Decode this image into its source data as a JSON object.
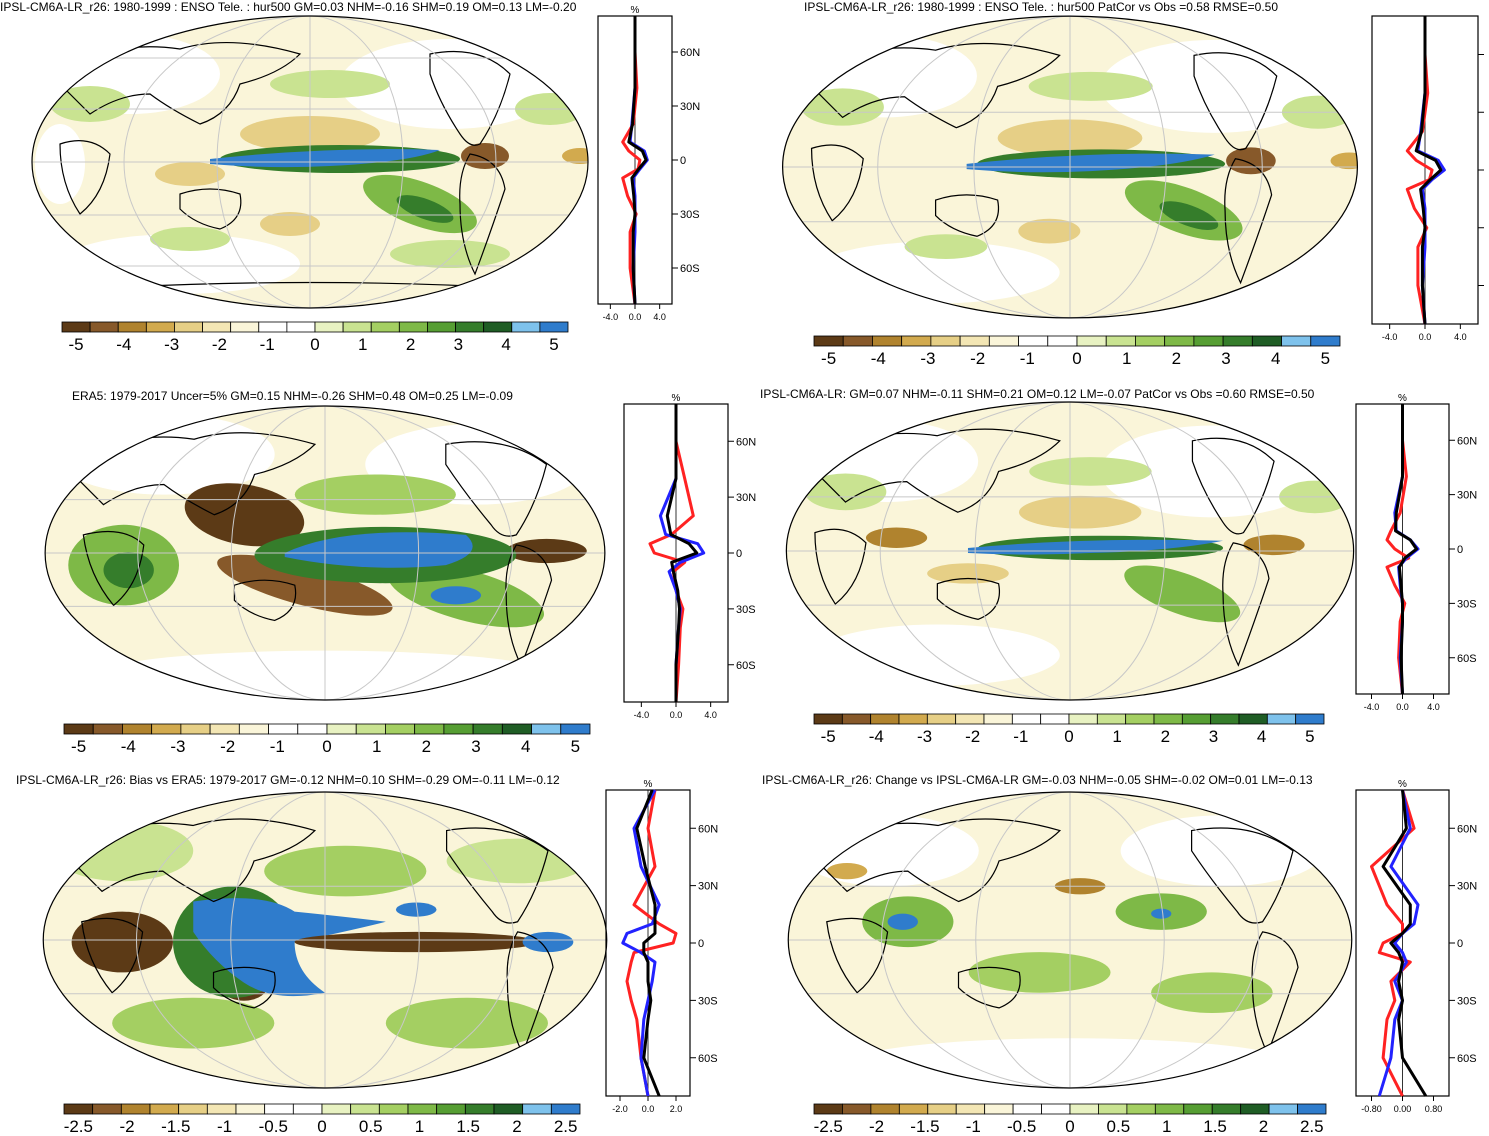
{
  "colors": {
    "palette": [
      "#5c3a16",
      "#87592a",
      "#b0832e",
      "#d2aa4e",
      "#e6cf86",
      "#f3e6b4",
      "#faf5d9",
      "#ffffff",
      "#ffffff",
      "#e8f2c2",
      "#c9e391",
      "#a4cf62",
      "#7eb947",
      "#569e33",
      "#357d2b",
      "#1f5d25",
      "#7ec2ec",
      "#2f7ccc"
    ],
    "model": "#2222ff",
    "obs": "#ff2222",
    "total": "#000000",
    "land": "#000000"
  },
  "panels": [
    {
      "title": "IPSL-CM6A-LR_r26: 1980-1999 : ENSO Tele. : hur500 GM=0.03 NHM=-0.16 SHM=0.19 OM=0.13 LM=-0.20",
      "unit": "%",
      "lat_ticks": [
        "60N",
        "30N",
        "0",
        "30S",
        "60S"
      ],
      "profile_x_ticks": [
        "-4.0",
        "0.0",
        "4.0"
      ],
      "colorbar_labels": [
        "-5",
        "-4",
        "-3",
        "-2",
        "-1",
        "0",
        "1",
        "2",
        "3",
        "4",
        "5"
      ]
    },
    {
      "title": "IPSL-CM6A-LR_r26: 1980-1999 : ENSO Tele. : hur500 PatCor vs Obs =0.58 RMSE=0.50",
      "unit": "",
      "lat_ticks": [],
      "profile_x_ticks": [
        "-4.0",
        "0.0",
        "4.0"
      ],
      "colorbar_labels": [
        "-5",
        "-4",
        "-3",
        "-2",
        "-1",
        "0",
        "1",
        "2",
        "3",
        "4",
        "5"
      ]
    },
    {
      "title": "ERA5: 1979-2017 Uncer=5% GM=0.15 NHM=-0.26 SHM=0.48 OM=0.25 LM=-0.09",
      "unit": "%",
      "lat_ticks": [
        "60N",
        "30N",
        "0",
        "30S",
        "60S"
      ],
      "profile_x_ticks": [
        "-4.0",
        "0.0",
        "4.0"
      ],
      "colorbar_labels": [
        "-5",
        "-4",
        "-3",
        "-2",
        "-1",
        "0",
        "1",
        "2",
        "3",
        "4",
        "5"
      ]
    },
    {
      "title": "IPSL-CM6A-LR: GM=0.07 NHM=-0.11 SHM=0.21 OM=0.12 LM=-0.07 PatCor vs Obs =0.60 RMSE=0.50",
      "unit": "%",
      "lat_ticks": [
        "60N",
        "30N",
        "0",
        "30S",
        "60S"
      ],
      "profile_x_ticks": [
        "-4.0",
        "0.0",
        "4.0"
      ],
      "colorbar_labels": [
        "-5",
        "-4",
        "-3",
        "-2",
        "-1",
        "0",
        "1",
        "2",
        "3",
        "4",
        "5"
      ]
    },
    {
      "title": "IPSL-CM6A-LR_r26: Bias vs ERA5: 1979-2017 GM=-0.12 NHM=0.10 SHM=-0.29 OM=-0.11 LM=-0.12",
      "unit": "%",
      "lat_ticks": [
        "60N",
        "30N",
        "0",
        "30S",
        "60S"
      ],
      "profile_x_ticks": [
        "-2.0",
        "0.0",
        "2.0"
      ],
      "colorbar_labels": [
        "-2.5",
        "-2",
        "-1.5",
        "-1",
        "-0.5",
        "0",
        "0.5",
        "1",
        "1.5",
        "2",
        "2.5"
      ]
    },
    {
      "title": "IPSL-CM6A-LR_r26: Change vs IPSL-CM6A-LR GM=-0.03 NHM=-0.05 SHM=-0.02 OM=0.01 LM=-0.13",
      "unit": "%",
      "lat_ticks": [
        "60N",
        "30N",
        "0",
        "30S",
        "60S"
      ],
      "profile_x_ticks": [
        "-0.80",
        "0.00",
        "0.80"
      ],
      "colorbar_labels": [
        "-2.5",
        "-2",
        "-1.5",
        "-1",
        "-0.5",
        "0",
        "0.5",
        "1",
        "1.5",
        "2",
        "2.5"
      ]
    }
  ],
  "chart_data": [
    {
      "type": "heatmap",
      "title": "IPSL-CM6A-LR_r26: 1980-1999 : ENSO Tele. : hur500 GM=0.03 NHM=-0.16 SHM=0.19 OM=0.13 LM=-0.20",
      "colorbar": [
        -5,
        5
      ],
      "profile": {
        "lat": [
          80,
          60,
          40,
          20,
          10,
          5,
          0,
          -5,
          -10,
          -20,
          -30,
          -40,
          -60,
          -80
        ],
        "model": [
          0,
          0,
          0,
          -0.5,
          -0.8,
          1.5,
          2.0,
          0.8,
          -0.3,
          0,
          0,
          0,
          -0.3,
          0
        ],
        "obs": [
          0,
          0,
          0.3,
          -0.3,
          -2.0,
          -1.0,
          0.8,
          0.5,
          -2.0,
          -1.2,
          0.2,
          -0.8,
          -0.8,
          0
        ],
        "total": [
          0,
          0,
          0,
          -0.4,
          -1.0,
          1.2,
          1.8,
          0.6,
          -0.5,
          -0.2,
          0,
          -0.3,
          -0.3,
          0
        ]
      }
    },
    {
      "type": "heatmap",
      "title": "IPSL-CM6A-LR_r26: 1980-1999 : ENSO Tele. : hur500 PatCor vs Obs =0.58 RMSE=0.50",
      "colorbar": [
        -5,
        5
      ],
      "profile": {
        "lat": [
          80,
          60,
          40,
          20,
          10,
          5,
          0,
          -5,
          -10,
          -20,
          -30,
          -40,
          -60,
          -80
        ],
        "model": [
          0,
          0,
          0,
          -0.5,
          -0.8,
          1.5,
          2.2,
          0.8,
          -0.3,
          0,
          0,
          0,
          -0.3,
          0
        ],
        "obs": [
          0,
          0,
          0.3,
          -0.3,
          -2.0,
          -1.0,
          0.8,
          0.5,
          -2.0,
          -1.2,
          0.2,
          -0.8,
          -0.8,
          0
        ],
        "total": [
          0,
          0,
          0,
          -0.4,
          -1.0,
          1.2,
          1.8,
          0.6,
          -0.5,
          -0.2,
          0,
          -0.3,
          -0.3,
          0
        ]
      }
    },
    {
      "type": "heatmap",
      "title": "ERA5: 1979-2017 Uncer=5% GM=0.15 NHM=-0.26 SHM=0.48 OM=0.25 LM=-0.09",
      "colorbar": [
        -5,
        5
      ],
      "profile": {
        "lat": [
          80,
          60,
          40,
          20,
          10,
          5,
          0,
          -5,
          -10,
          -20,
          -30,
          -40,
          -60,
          -80
        ],
        "model": [
          0,
          0,
          0,
          -1.8,
          -1.2,
          2.5,
          3.2,
          0.5,
          -0.8,
          0,
          0.5,
          0.3,
          0,
          0
        ],
        "obs": [
          0,
          0,
          1.0,
          2.0,
          -0.5,
          -3.0,
          -2.5,
          1.0,
          -0.3,
          0,
          0.8,
          0.5,
          0.3,
          0
        ],
        "total": [
          0,
          0,
          0,
          -1.0,
          -0.6,
          1.5,
          2.4,
          -0.5,
          -0.3,
          0.2,
          0.4,
          0.3,
          0,
          0
        ]
      }
    },
    {
      "type": "heatmap",
      "title": "IPSL-CM6A-LR: GM=0.07 NHM=-0.11 SHM=0.21 OM=0.12 LM=-0.07 PatCor vs Obs =0.60 RMSE=0.50",
      "colorbar": [
        -5,
        5
      ],
      "profile": {
        "lat": [
          80,
          60,
          40,
          20,
          10,
          5,
          0,
          -5,
          -10,
          -20,
          -30,
          -40,
          -60,
          -80
        ],
        "model": [
          0,
          0,
          0,
          -1.0,
          -0.8,
          1.0,
          2.0,
          0.5,
          -0.5,
          -0.3,
          0,
          0,
          -0.3,
          0
        ],
        "obs": [
          0,
          0,
          0.5,
          -0.3,
          -1.5,
          -2.0,
          -1.0,
          0.8,
          -2.0,
          -1.0,
          0.3,
          -0.3,
          -0.5,
          0
        ],
        "total": [
          0,
          0,
          0,
          -0.8,
          -0.9,
          1.0,
          1.8,
          0.3,
          -0.4,
          -0.2,
          0,
          0,
          -0.2,
          0
        ]
      }
    },
    {
      "type": "heatmap",
      "title": "IPSL-CM6A-LR_r26: Bias vs ERA5: 1979-2017 GM=-0.12 NHM=0.10 SHM=-0.29 OM=-0.11 LM=-0.12",
      "colorbar": [
        -2.5,
        2.5
      ],
      "profile": {
        "lat": [
          80,
          60,
          40,
          20,
          10,
          5,
          0,
          -5,
          -10,
          -20,
          -30,
          -40,
          -60,
          -80
        ],
        "model": [
          0.5,
          -1.0,
          -0.5,
          0.8,
          0.3,
          -1.5,
          -1.8,
          -0.5,
          0.5,
          0.3,
          0,
          -0.3,
          -0.5,
          0
        ],
        "obs": [
          0.5,
          0,
          0.5,
          -1.0,
          0.8,
          2.0,
          1.8,
          -1.0,
          -1.2,
          -1.5,
          -1.2,
          -0.8,
          -0.5,
          0
        ],
        "total": [
          0.3,
          -0.8,
          -0.2,
          0.5,
          0.5,
          0.5,
          -0.3,
          -0.3,
          0,
          0,
          0.2,
          0,
          -0.3,
          0.8
        ]
      }
    },
    {
      "type": "heatmap",
      "title": "IPSL-CM6A-LR_r26: Change vs IPSL-CM6A-LR GM=-0.03 NHM=-0.05 SHM=-0.02 OM=0.01 LM=-0.13",
      "colorbar": [
        -2.5,
        2.5
      ],
      "profile": {
        "lat": [
          80,
          60,
          40,
          20,
          10,
          5,
          0,
          -5,
          -10,
          -20,
          -30,
          -40,
          -60,
          -80
        ],
        "model": [
          0,
          0.2,
          -0.3,
          0.4,
          0.3,
          0,
          -0.2,
          0,
          0.1,
          -0.2,
          0,
          -0.2,
          -0.3,
          -0.6
        ],
        "obs": [
          0,
          0.3,
          -0.8,
          -0.4,
          0,
          0,
          -0.5,
          -0.6,
          0.2,
          -0.3,
          -0.2,
          -0.4,
          -0.5,
          0
        ],
        "total": [
          0,
          0.1,
          -0.5,
          0.2,
          0.2,
          0,
          -0.3,
          -0.1,
          0,
          -0.1,
          0,
          -0.1,
          0,
          0.6
        ]
      }
    }
  ]
}
